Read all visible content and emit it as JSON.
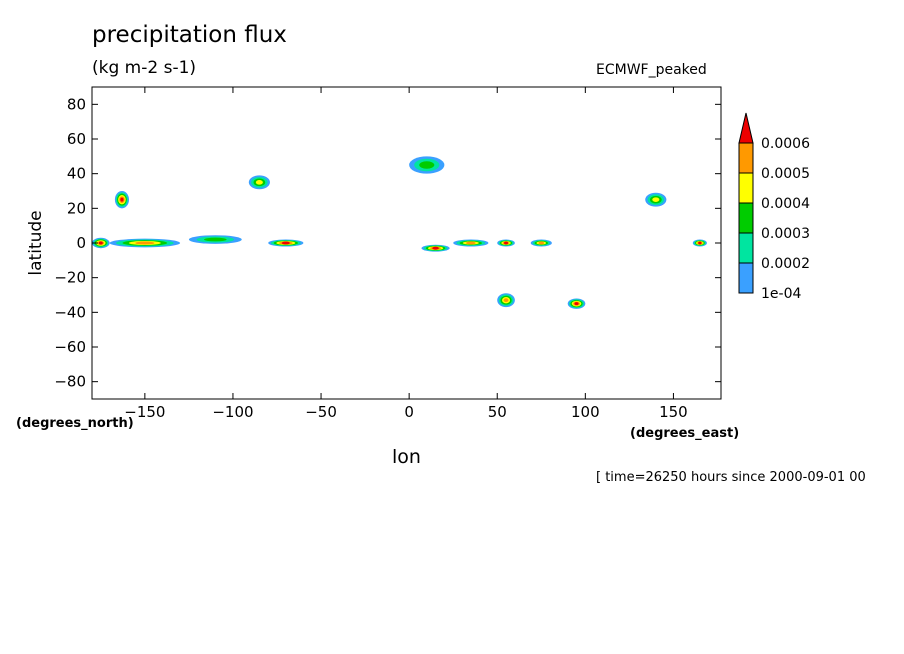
{
  "chart_data": {
    "type": "heatmap",
    "title": "precipitation flux",
    "units": "(kg m-2 s-1)",
    "subtitle_right": "ECMWF_peaked",
    "xlabel": "lon",
    "ylabel": "latitude",
    "x_units": "(degrees_east)",
    "y_units": "(degrees_north)",
    "time_label": "[ time=26250 hours since 2000-09-01 00",
    "xlim": [
      -180,
      177
    ],
    "ylim": [
      -90,
      90
    ],
    "x_ticks": [
      -150,
      -100,
      -50,
      0,
      50,
      100,
      150
    ],
    "y_ticks": [
      80,
      60,
      40,
      20,
      0,
      -20,
      -40,
      -60,
      -80
    ],
    "colorbar": {
      "labels": [
        "1e-04",
        "0.0002",
        "0.0003",
        "0.0004",
        "0.0005",
        "0.0006"
      ],
      "colors": [
        "#3aa0ff",
        "#00e5a0",
        "#00cc00",
        "#ffff00",
        "#ff9900",
        "#ee0000"
      ]
    },
    "features": [
      {
        "lon": -175,
        "lat": 0,
        "level": 6,
        "w": 10,
        "h": 6
      },
      {
        "lon": -163,
        "lat": 25,
        "level": 6,
        "w": 8,
        "h": 10
      },
      {
        "lon": -150,
        "lat": 0,
        "level": 5,
        "w": 40,
        "h": 5
      },
      {
        "lon": -110,
        "lat": 2,
        "level": 3,
        "w": 30,
        "h": 5
      },
      {
        "lon": -70,
        "lat": 0,
        "level": 6,
        "w": 20,
        "h": 4
      },
      {
        "lon": 15,
        "lat": -3,
        "level": 6,
        "w": 16,
        "h": 4
      },
      {
        "lon": 35,
        "lat": 0,
        "level": 5,
        "w": 20,
        "h": 4
      },
      {
        "lon": 55,
        "lat": 0,
        "level": 6,
        "w": 10,
        "h": 4
      },
      {
        "lon": 75,
        "lat": 0,
        "level": 5,
        "w": 12,
        "h": 4
      },
      {
        "lon": 165,
        "lat": 0,
        "level": 6,
        "w": 8,
        "h": 4
      },
      {
        "lon": 55,
        "lat": -33,
        "level": 5,
        "w": 10,
        "h": 8
      },
      {
        "lon": 95,
        "lat": -35,
        "level": 6,
        "w": 10,
        "h": 6
      },
      {
        "lon": -85,
        "lat": 35,
        "level": 4,
        "w": 12,
        "h": 8
      },
      {
        "lon": 140,
        "lat": 25,
        "level": 4,
        "w": 12,
        "h": 8
      },
      {
        "lon": 10,
        "lat": 45,
        "level": 3,
        "w": 20,
        "h": 10
      }
    ]
  }
}
